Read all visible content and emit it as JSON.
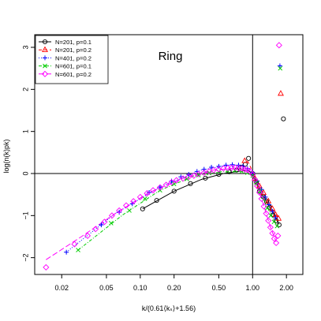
{
  "chart_data": {
    "type": "scatter",
    "title": "Ring",
    "xlabel": "k/(0.61⟨kₛ⟩+1.56)",
    "ylabel": "log(n(k)pk)",
    "x_scale": "log",
    "xlim": [
      0.0115,
      2.8
    ],
    "ylim": [
      -2.4,
      3.3
    ],
    "x_ticks": [
      {
        "value": 0.02,
        "label": "0.02"
      },
      {
        "value": 0.05,
        "label": "0.05"
      },
      {
        "value": 0.1,
        "label": "0.10"
      },
      {
        "value": 0.2,
        "label": "0.20"
      },
      {
        "value": 0.5,
        "label": "0.50"
      },
      {
        "value": 1.0,
        "label": "1.00"
      },
      {
        "value": 2.0,
        "label": "2.00"
      }
    ],
    "y_ticks": [
      {
        "value": -2,
        "label": "−2"
      },
      {
        "value": -1,
        "label": "−1"
      },
      {
        "value": 0,
        "label": "0"
      },
      {
        "value": 1,
        "label": "1"
      },
      {
        "value": 2,
        "label": "2"
      },
      {
        "value": 3,
        "label": "3"
      }
    ],
    "reference_lines": {
      "horizontal_y": 0,
      "vertical_x": 1.0
    },
    "legend_position": "top-left",
    "series": [
      {
        "name": "N=201, p=0.1",
        "marker": "circle",
        "color": "#000000",
        "line_style": "solid",
        "points": [
          [
            0.105,
            -0.84
          ],
          [
            0.14,
            -0.64
          ],
          [
            0.2,
            -0.42
          ],
          [
            0.28,
            -0.24
          ],
          [
            0.38,
            -0.11
          ],
          [
            0.5,
            -0.02
          ],
          [
            0.62,
            0.04
          ],
          [
            0.72,
            0.08
          ],
          [
            0.8,
            0.15
          ],
          [
            0.86,
            0.22
          ],
          [
            0.92,
            0.36
          ],
          [
            1.0,
            0.0
          ],
          [
            1.08,
            -0.2
          ],
          [
            1.15,
            -0.42
          ],
          [
            1.24,
            -0.55
          ],
          [
            1.33,
            -0.66
          ],
          [
            1.42,
            -0.8
          ],
          [
            1.52,
            -0.98
          ],
          [
            1.62,
            -1.12
          ],
          [
            1.72,
            -1.22
          ],
          [
            1.88,
            1.3
          ]
        ],
        "fit": [
          [
            0.105,
            -0.84
          ],
          [
            0.2,
            -0.42
          ],
          [
            0.35,
            -0.14
          ],
          [
            0.55,
            0.0
          ],
          [
            0.75,
            0.05
          ],
          [
            0.9,
            0.08
          ],
          [
            1.0,
            0.0
          ],
          [
            1.15,
            -0.38
          ],
          [
            1.35,
            -0.7
          ],
          [
            1.55,
            -0.98
          ],
          [
            1.72,
            -1.2
          ]
        ]
      },
      {
        "name": "N=201, p=0.2",
        "marker": "triangle",
        "color": "#ff0000",
        "line_style": "dashed",
        "points": [
          [
            0.85,
            0.3
          ],
          [
            1.05,
            -0.12
          ],
          [
            1.15,
            -0.3
          ],
          [
            1.25,
            -0.46
          ],
          [
            1.38,
            -0.66
          ],
          [
            1.5,
            -0.84
          ],
          [
            1.6,
            -0.98
          ],
          [
            1.7,
            -1.07
          ],
          [
            1.78,
            1.9
          ]
        ],
        "fit": [
          [
            0.9,
            0.3
          ],
          [
            1.0,
            0.05
          ],
          [
            1.2,
            -0.4
          ],
          [
            1.45,
            -0.78
          ],
          [
            1.7,
            -1.07
          ]
        ]
      },
      {
        "name": "N=401, p=0.2",
        "marker": "plus",
        "color": "#0000ff",
        "line_style": "dotted",
        "points": [
          [
            0.022,
            -1.87
          ],
          [
            0.045,
            -1.22
          ],
          [
            0.065,
            -0.92
          ],
          [
            0.085,
            -0.72
          ],
          [
            0.12,
            -0.45
          ],
          [
            0.15,
            -0.32
          ],
          [
            0.19,
            -0.18
          ],
          [
            0.23,
            -0.08
          ],
          [
            0.27,
            -0.02
          ],
          [
            0.32,
            0.05
          ],
          [
            0.37,
            0.1
          ],
          [
            0.43,
            0.15
          ],
          [
            0.5,
            0.17
          ],
          [
            0.58,
            0.2
          ],
          [
            0.66,
            0.21
          ],
          [
            0.75,
            0.2
          ],
          [
            0.82,
            0.17
          ],
          [
            0.9,
            0.12
          ],
          [
            1.0,
            0.02
          ],
          [
            1.1,
            -0.18
          ],
          [
            1.2,
            -0.38
          ],
          [
            1.3,
            -0.56
          ],
          [
            1.4,
            -0.74
          ],
          [
            1.5,
            -0.9
          ],
          [
            1.6,
            -1.05
          ],
          [
            1.75,
            2.56
          ]
        ],
        "fit": [
          [
            0.022,
            -1.87
          ],
          [
            0.06,
            -0.95
          ],
          [
            0.15,
            -0.32
          ],
          [
            0.35,
            0.08
          ],
          [
            0.6,
            0.2
          ],
          [
            0.85,
            0.16
          ],
          [
            1.0,
            0.0
          ],
          [
            1.3,
            -0.55
          ],
          [
            1.6,
            -1.05
          ]
        ]
      },
      {
        "name": "N=601, p=0.1",
        "marker": "cross",
        "color": "#00cc00",
        "line_style": "dashdot",
        "points": [
          [
            0.028,
            -1.82
          ],
          [
            0.055,
            -1.18
          ],
          [
            0.08,
            -0.88
          ],
          [
            0.11,
            -0.6
          ],
          [
            0.15,
            -0.4
          ],
          [
            0.2,
            -0.25
          ],
          [
            0.26,
            -0.13
          ],
          [
            0.33,
            -0.04
          ],
          [
            0.41,
            0.01
          ],
          [
            0.5,
            0.04
          ],
          [
            0.6,
            0.06
          ],
          [
            0.7,
            0.07
          ],
          [
            0.8,
            0.05
          ],
          [
            0.9,
            0.02
          ],
          [
            1.0,
            -0.05
          ],
          [
            1.08,
            -0.22
          ],
          [
            1.16,
            -0.42
          ],
          [
            1.25,
            -0.62
          ],
          [
            1.35,
            -0.82
          ],
          [
            1.45,
            -1.0
          ],
          [
            1.55,
            -1.15
          ],
          [
            1.65,
            -1.25
          ],
          [
            1.76,
            2.5
          ]
        ],
        "fit": [
          [
            0.028,
            -1.82
          ],
          [
            0.07,
            -0.98
          ],
          [
            0.15,
            -0.4
          ],
          [
            0.3,
            -0.06
          ],
          [
            0.55,
            0.05
          ],
          [
            0.8,
            0.05
          ],
          [
            1.0,
            -0.05
          ],
          [
            1.3,
            -0.72
          ],
          [
            1.65,
            -1.25
          ]
        ]
      },
      {
        "name": "N=601, p=0.2",
        "marker": "diamond",
        "color": "#ff00ff",
        "line_style": "longdash",
        "points": [
          [
            0.0145,
            -2.23
          ],
          [
            0.026,
            -1.68
          ],
          [
            0.034,
            -1.48
          ],
          [
            0.04,
            -1.32
          ],
          [
            0.048,
            -1.15
          ],
          [
            0.056,
            -1.0
          ],
          [
            0.065,
            -0.88
          ],
          [
            0.075,
            -0.76
          ],
          [
            0.087,
            -0.66
          ],
          [
            0.1,
            -0.56
          ],
          [
            0.115,
            -0.47
          ],
          [
            0.13,
            -0.4
          ],
          [
            0.15,
            -0.33
          ],
          [
            0.17,
            -0.27
          ],
          [
            0.19,
            -0.21
          ],
          [
            0.21,
            -0.16
          ],
          [
            0.24,
            -0.12
          ],
          [
            0.27,
            -0.08
          ],
          [
            0.3,
            -0.05
          ],
          [
            0.33,
            -0.01
          ],
          [
            0.37,
            0.02
          ],
          [
            0.41,
            0.05
          ],
          [
            0.45,
            0.08
          ],
          [
            0.5,
            0.1
          ],
          [
            0.55,
            0.12
          ],
          [
            0.6,
            0.13
          ],
          [
            0.65,
            0.14
          ],
          [
            0.7,
            0.14
          ],
          [
            0.75,
            0.13
          ],
          [
            0.8,
            0.12
          ],
          [
            0.85,
            0.1
          ],
          [
            0.9,
            0.08
          ],
          [
            0.95,
            0.05
          ],
          [
            1.0,
            -0.02
          ],
          [
            1.05,
            -0.15
          ],
          [
            1.1,
            -0.3
          ],
          [
            1.15,
            -0.45
          ],
          [
            1.2,
            -0.6
          ],
          [
            1.26,
            -0.78
          ],
          [
            1.32,
            -0.95
          ],
          [
            1.38,
            -1.12
          ],
          [
            1.44,
            -1.28
          ],
          [
            1.5,
            -1.42
          ],
          [
            1.56,
            -1.55
          ],
          [
            1.62,
            -1.65
          ],
          [
            1.68,
            -1.48
          ],
          [
            1.72,
            3.05
          ]
        ],
        "fit": [
          [
            0.0145,
            -2.05
          ],
          [
            0.03,
            -1.5
          ],
          [
            0.06,
            -0.95
          ],
          [
            0.12,
            -0.45
          ],
          [
            0.25,
            -0.1
          ],
          [
            0.45,
            0.08
          ],
          [
            0.7,
            0.13
          ],
          [
            0.9,
            0.07
          ],
          [
            1.0,
            -0.02
          ],
          [
            1.2,
            -0.6
          ],
          [
            1.45,
            -1.3
          ],
          [
            1.62,
            -1.62
          ]
        ]
      }
    ]
  }
}
